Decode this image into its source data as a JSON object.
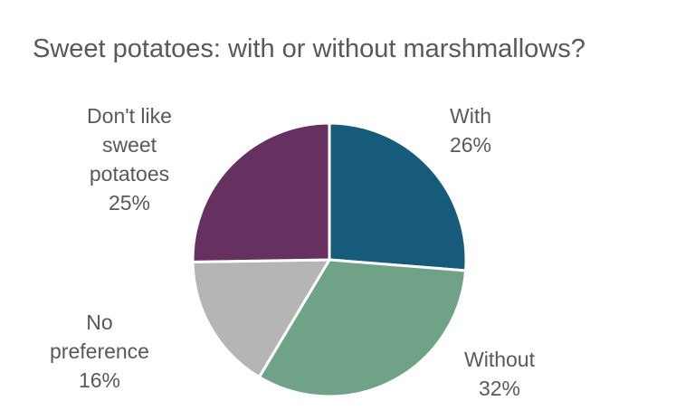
{
  "chart_data": {
    "type": "pie",
    "title": "Sweet potatoes: with or without marshmallows?",
    "slices": [
      {
        "label": "With",
        "value": 26,
        "value_label": "26%",
        "color": "#175b7b"
      },
      {
        "label": "Without",
        "value": 32,
        "value_label": "32%",
        "color": "#70a288"
      },
      {
        "label": "No\npreference",
        "value": 16,
        "value_label": "16%",
        "color": "#b5b5b5"
      },
      {
        "label": "Don't like\nsweet\npotatoes",
        "value": 25,
        "value_label": "25%",
        "color": "#663060"
      }
    ],
    "start_angle_deg": 0,
    "direction": "clockwise",
    "legend": "none"
  }
}
